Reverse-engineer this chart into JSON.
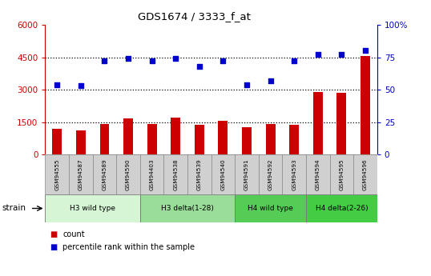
{
  "title": "GDS1674 / 3333_f_at",
  "categories": [
    "GSM94555",
    "GSM94587",
    "GSM94589",
    "GSM94590",
    "GSM94403",
    "GSM94538",
    "GSM94539",
    "GSM94540",
    "GSM94591",
    "GSM94592",
    "GSM94593",
    "GSM94594",
    "GSM94595",
    "GSM94596"
  ],
  "counts": [
    1200,
    1100,
    1430,
    1680,
    1420,
    1700,
    1380,
    1560,
    1280,
    1430,
    1360,
    2900,
    2840,
    4550
  ],
  "percentile_ranks": [
    54,
    53,
    72,
    74,
    72,
    74,
    68,
    72,
    54,
    57,
    72,
    77,
    77,
    80
  ],
  "bar_color": "#cc0000",
  "dot_color": "#0000cc",
  "ylim_left": [
    0,
    6000
  ],
  "ylim_right": [
    0,
    100
  ],
  "yticks_left": [
    0,
    1500,
    3000,
    4500,
    6000
  ],
  "yticks_right": [
    0,
    25,
    50,
    75,
    100
  ],
  "ytick_labels_left": [
    "0",
    "1500",
    "3000",
    "4500",
    "6000"
  ],
  "ytick_labels_right": [
    "0",
    "25",
    "50",
    "75",
    "100%"
  ],
  "groups": [
    {
      "label": "H3 wild type",
      "start": 0,
      "end": 3,
      "color": "#d5f5d5"
    },
    {
      "label": "H3 delta(1-28)",
      "start": 4,
      "end": 7,
      "color": "#99dd99"
    },
    {
      "label": "H4 wild type",
      "start": 8,
      "end": 10,
      "color": "#55cc55"
    },
    {
      "label": "H4 delta(2-26)",
      "start": 11,
      "end": 13,
      "color": "#44cc44"
    }
  ],
  "strain_label": "strain",
  "legend_count_label": "count",
  "legend_pct_label": "percentile rank within the sample",
  "bar_width": 0.4,
  "dot_size": 18
}
